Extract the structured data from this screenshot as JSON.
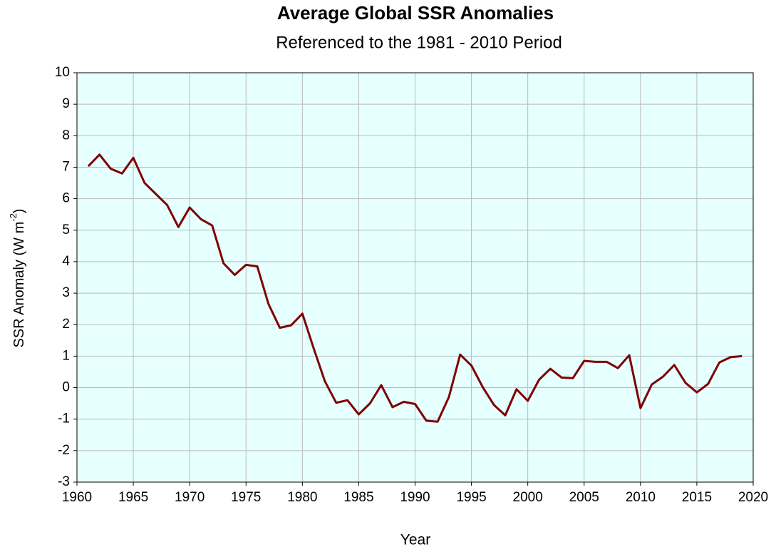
{
  "chart_data": {
    "type": "line",
    "title": "Average Global SSR Anomalies",
    "subtitle": "Referenced to the 1981 - 2010 Period",
    "xlabel": "Year",
    "ylabel": {
      "text": "SSR Anomaly (W m",
      "sup": "-2",
      "end": ")"
    },
    "x": [
      1961,
      1962,
      1963,
      1964,
      1965,
      1966,
      1967,
      1968,
      1969,
      1970,
      1971,
      1972,
      1973,
      1974,
      1975,
      1976,
      1977,
      1978,
      1979,
      1980,
      1981,
      1982,
      1983,
      1984,
      1985,
      1986,
      1987,
      1988,
      1989,
      1990,
      1991,
      1992,
      1993,
      1994,
      1995,
      1996,
      1997,
      1998,
      1999,
      2000,
      2001,
      2002,
      2003,
      2004,
      2005,
      2006,
      2007,
      2008,
      2009,
      2010,
      2011,
      2012,
      2013,
      2014,
      2015,
      2016,
      2017,
      2018,
      2019
    ],
    "series": [
      {
        "color": "#800000",
        "values": [
          7.03,
          7.4,
          6.95,
          6.8,
          7.3,
          6.5,
          6.15,
          5.8,
          5.1,
          5.72,
          5.35,
          5.15,
          3.95,
          3.58,
          3.9,
          3.85,
          2.65,
          1.9,
          1.98,
          2.35,
          1.25,
          0.2,
          -0.48,
          -0.4,
          -0.85,
          -0.5,
          0.08,
          -0.62,
          -0.45,
          -0.52,
          -1.05,
          -1.08,
          -0.3,
          1.05,
          0.7,
          0.02,
          -0.55,
          -0.88,
          -0.05,
          -0.42,
          0.25,
          0.6,
          0.32,
          0.3,
          0.85,
          0.82,
          0.82,
          0.62,
          1.03,
          -0.65,
          0.1,
          0.35,
          0.72,
          0.15,
          -0.15,
          0.12,
          0.8,
          0.97,
          1.0
        ]
      }
    ],
    "xlim": [
      1960,
      2020
    ],
    "xticks": [
      1960,
      1965,
      1970,
      1975,
      1980,
      1985,
      1990,
      1995,
      2000,
      2005,
      2010,
      2015,
      2020
    ],
    "ylim": [
      -3,
      10
    ],
    "yticks": [
      -3,
      -2,
      -1,
      0,
      1,
      2,
      3,
      4,
      5,
      6,
      7,
      8,
      9,
      10
    ],
    "grid": true,
    "background": "#e6ffff"
  }
}
